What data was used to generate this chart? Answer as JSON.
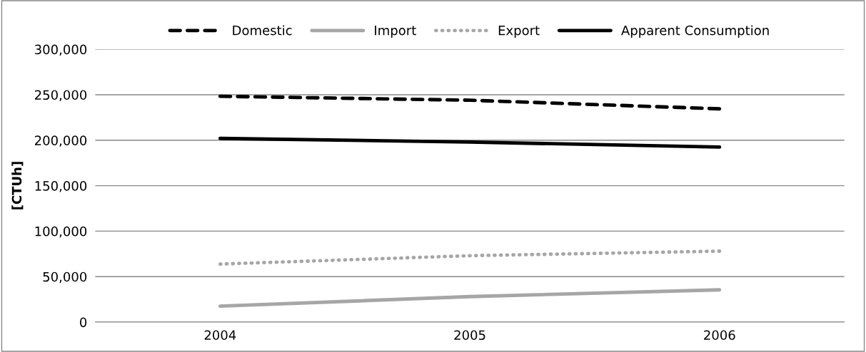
{
  "chart_data": {
    "type": "line",
    "ylabel": "[CTUh]",
    "categories": [
      "2004",
      "2005",
      "2006"
    ],
    "series": [
      {
        "name": "Domestic",
        "color": "#000000",
        "line_style": "dashed",
        "values": [
          248300,
          244000,
          234500
        ]
      },
      {
        "name": "Import",
        "color": "#a6a6a6",
        "line_style": "solid",
        "values": [
          17500,
          28000,
          35500
        ]
      },
      {
        "name": "Export",
        "color": "#a6a6a6",
        "line_style": "dotted",
        "values": [
          63800,
          73000,
          78000
        ]
      },
      {
        "name": "Apparent Consumption",
        "color": "#000000",
        "line_style": "solid",
        "values": [
          202000,
          198000,
          192500
        ]
      }
    ],
    "ylim": [
      0,
      300000
    ],
    "yticks": [
      {
        "value": 0,
        "label": "0"
      },
      {
        "value": 50000,
        "label": "50,000"
      },
      {
        "value": 100000,
        "label": "100,000"
      },
      {
        "value": 150000,
        "label": "150,000"
      },
      {
        "value": 200000,
        "label": "200,000"
      },
      {
        "value": 250000,
        "label": "250,000"
      },
      {
        "value": 300000,
        "label": "300,000"
      }
    ],
    "grid": "y",
    "legend": "top",
    "marker": "none"
  }
}
